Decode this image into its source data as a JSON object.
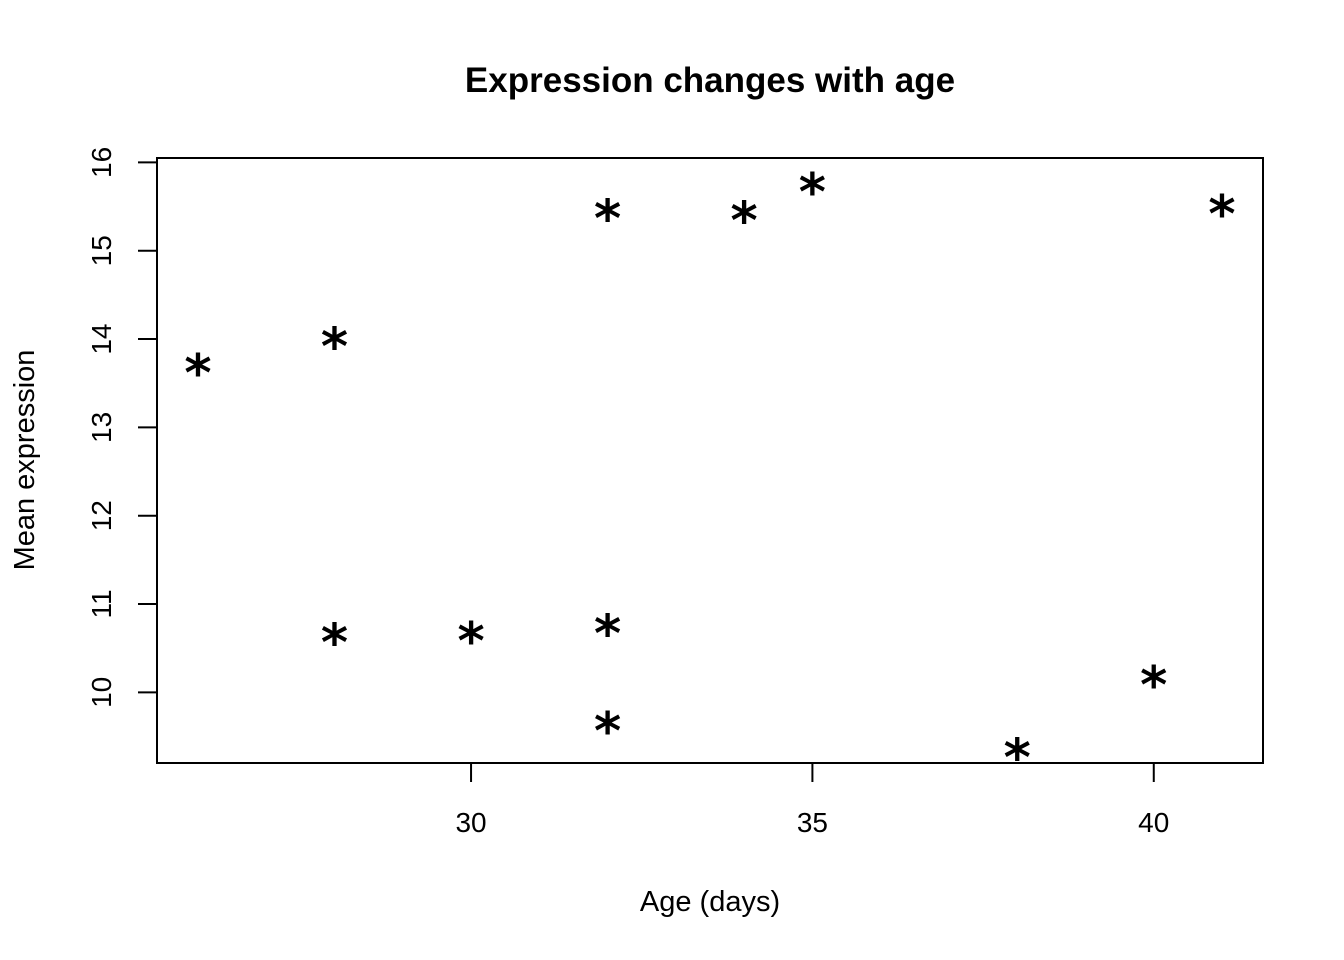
{
  "chart_data": {
    "type": "scatter",
    "title": "Expression changes with age",
    "xlabel": "Age (days)",
    "ylabel": "Mean expression",
    "marker": "*",
    "xlim": [
      25.4,
      41.6
    ],
    "ylim": [
      9.2,
      16.05
    ],
    "x_ticks": [
      30,
      35,
      40
    ],
    "y_ticks": [
      10,
      11,
      12,
      13,
      14,
      15,
      16
    ],
    "grid": false,
    "legend": "none",
    "points": [
      {
        "x": 26,
        "y": 13.75
      },
      {
        "x": 28,
        "y": 14.05
      },
      {
        "x": 28,
        "y": 10.7
      },
      {
        "x": 30,
        "y": 10.72
      },
      {
        "x": 32,
        "y": 15.5
      },
      {
        "x": 32,
        "y": 10.8
      },
      {
        "x": 32,
        "y": 9.7
      },
      {
        "x": 34,
        "y": 15.48
      },
      {
        "x": 35,
        "y": 15.8
      },
      {
        "x": 38,
        "y": 9.4
      },
      {
        "x": 40,
        "y": 10.22
      },
      {
        "x": 41,
        "y": 15.55
      }
    ],
    "colors": {
      "marks": "#000000",
      "axes": "#000000",
      "background": "#ffffff"
    }
  }
}
